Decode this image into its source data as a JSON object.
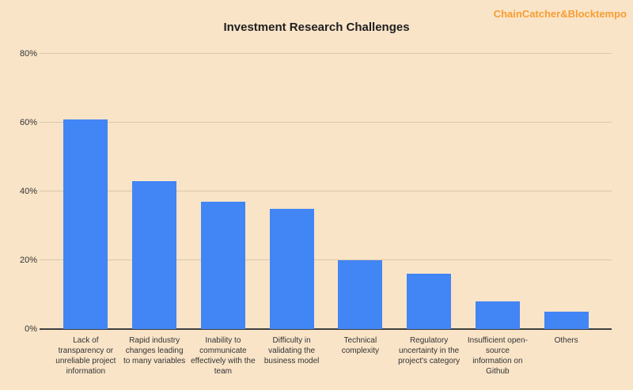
{
  "page": {
    "title": "Investment Research Challenges",
    "watermark": "ChainCatcher&Blocktempo",
    "colors": {
      "background": "#f9e4c8",
      "bar": "#4285f4",
      "gridline": "#d9c5a8",
      "axis_line": "#3f3f3f",
      "text": "#333333",
      "title_text": "#1f1f1f",
      "watermark_text": "#f89d32"
    }
  },
  "chart_data": {
    "type": "bar",
    "title": "Investment Research Challenges",
    "categories": [
      "Lack of transparency or unreliable project information",
      "Rapid industry changes leading to many variables",
      "Inability to communicate effectively with the team",
      "Difficulty in validating the business model",
      "Technical complexity",
      "Regulatory uncertainty in the project's category",
      "Insufficient open-source information on Github",
      "Others"
    ],
    "category_label_lines": [
      [
        "Lack of",
        "transparency or",
        "unreliable project",
        "information"
      ],
      [
        "Rapid industry",
        "changes leading",
        "to many variables"
      ],
      [
        "Inability to",
        "communicate",
        "effectively with the",
        "team"
      ],
      [
        "Difficulty in",
        "validating the",
        "business model"
      ],
      [
        "Technical",
        "complexity"
      ],
      [
        "Regulatory",
        "uncertainty in the",
        "project's category"
      ],
      [
        "Insufficient open-",
        "source",
        "information on",
        "Github"
      ],
      [
        "Others"
      ]
    ],
    "values": [
      61,
      43,
      37,
      35,
      20,
      16,
      8,
      5
    ],
    "unit": "%",
    "xlabel": "",
    "ylabel": "",
    "ylim": [
      0,
      80
    ],
    "ytick_values": [
      0,
      20,
      40,
      60,
      80
    ],
    "ytick_labels": [
      "0%",
      "20%",
      "40%",
      "60%",
      "80%"
    ],
    "grid": true,
    "legend_position": "none"
  }
}
